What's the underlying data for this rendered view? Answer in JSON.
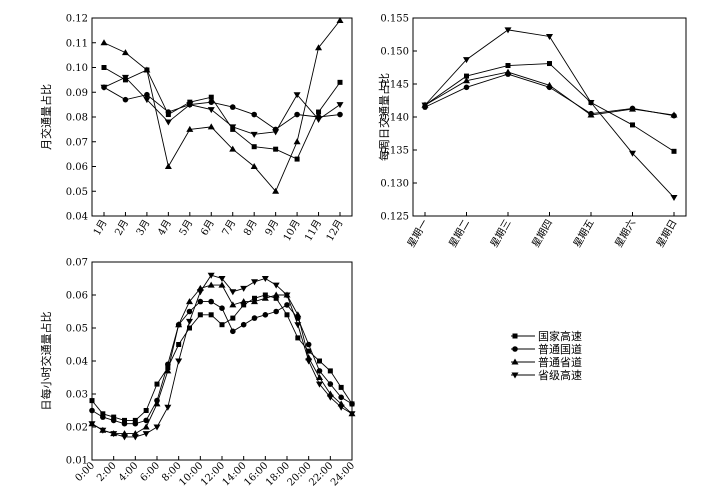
{
  "marker_legend": {
    "国家高速": "square",
    "普通国道": "circle",
    "普通省道": "triangle-up",
    "省级高速": "triangle-down"
  },
  "legend": [
    "国家高速",
    "普通国道",
    "普通省道",
    "省级高速"
  ],
  "chart_data": [
    {
      "id": "monthly",
      "type": "line",
      "title": "",
      "xlabel": "",
      "ylabel": "月交通量占比",
      "categories": [
        "1月",
        "2月",
        "3月",
        "4月",
        "5月",
        "6月",
        "7月",
        "8月",
        "9月",
        "10月",
        "11月",
        "12月"
      ],
      "ylim": [
        0.04,
        0.12
      ],
      "yticks": [
        "0.04",
        "0.05",
        "0.06",
        "0.07",
        "0.08",
        "0.09",
        "0.10",
        "0.11",
        "0.12"
      ],
      "series": [
        {
          "name": "国家高速",
          "values": [
            0.1,
            0.095,
            0.099,
            0.081,
            0.086,
            0.088,
            0.075,
            0.068,
            0.067,
            0.063,
            0.082,
            0.094
          ]
        },
        {
          "name": "普通国道",
          "values": [
            0.092,
            0.087,
            0.089,
            0.082,
            0.085,
            0.086,
            0.084,
            0.081,
            0.075,
            0.081,
            0.08,
            0.081
          ]
        },
        {
          "name": "普通省道",
          "values": [
            0.11,
            0.106,
            0.099,
            0.06,
            0.075,
            0.076,
            0.067,
            0.06,
            0.05,
            0.07,
            0.108,
            0.119
          ]
        },
        {
          "name": "省级高速",
          "values": [
            0.092,
            0.096,
            0.087,
            0.078,
            0.085,
            0.083,
            0.076,
            0.073,
            0.074,
            0.089,
            0.079,
            0.085
          ]
        }
      ]
    },
    {
      "id": "weekly",
      "type": "line",
      "title": "",
      "xlabel": "",
      "ylabel": "每周日交通量占比",
      "categories": [
        "星期一",
        "星期二",
        "星期三",
        "星期四",
        "星期五",
        "星期六",
        "星期日"
      ],
      "ylim": [
        0.125,
        0.155
      ],
      "yticks": [
        "0.125",
        "0.130",
        "0.135",
        "0.140",
        "0.145",
        "0.150",
        "0.155"
      ],
      "series": [
        {
          "name": "国家高速",
          "values": [
            0.1418,
            0.1462,
            0.1478,
            0.1481,
            0.1422,
            0.1388,
            0.1348
          ]
        },
        {
          "name": "普通国道",
          "values": [
            0.1415,
            0.1445,
            0.1465,
            0.1445,
            0.1405,
            0.1413,
            0.1402
          ]
        },
        {
          "name": "普通省道",
          "values": [
            0.1418,
            0.1455,
            0.1468,
            0.1448,
            0.1403,
            0.1412,
            0.1403
          ]
        },
        {
          "name": "省级高速",
          "values": [
            0.1418,
            0.1487,
            0.1532,
            0.1522,
            0.1422,
            0.1345,
            0.1278
          ]
        }
      ]
    },
    {
      "id": "hourly",
      "type": "line",
      "title": "",
      "xlabel": "",
      "ylabel": "日每小时交通量占比",
      "x": [
        0,
        1,
        2,
        3,
        4,
        5,
        6,
        7,
        8,
        9,
        10,
        11,
        12,
        13,
        14,
        15,
        16,
        17,
        18,
        19,
        20,
        21,
        22,
        23,
        24
      ],
      "xticks": [
        "0:00",
        "2:00",
        "4:00",
        "6:00",
        "8:00",
        "10:00",
        "12:00",
        "14:00",
        "16:00",
        "18:00",
        "20:00",
        "22:00",
        "24:00"
      ],
      "xlim": [
        0,
        24
      ],
      "ylim": [
        0.01,
        0.07
      ],
      "yticks": [
        "0.01",
        "0.02",
        "0.03",
        "0.04",
        "0.05",
        "0.06",
        "0.07"
      ],
      "series": [
        {
          "name": "国家高速",
          "values": [
            0.028,
            0.024,
            0.023,
            0.022,
            0.022,
            0.025,
            0.033,
            0.038,
            0.045,
            0.05,
            0.054,
            0.054,
            0.051,
            0.053,
            0.057,
            0.059,
            0.06,
            0.059,
            0.054,
            0.047,
            0.043,
            0.04,
            0.037,
            0.032,
            0.027
          ]
        },
        {
          "name": "普通国道",
          "values": [
            0.025,
            0.023,
            0.022,
            0.021,
            0.021,
            0.022,
            0.028,
            0.039,
            0.051,
            0.055,
            0.058,
            0.058,
            0.056,
            0.049,
            0.051,
            0.053,
            0.054,
            0.055,
            0.057,
            0.053,
            0.045,
            0.037,
            0.033,
            0.029,
            0.027
          ]
        },
        {
          "name": "普通省道",
          "values": [
            0.021,
            0.019,
            0.018,
            0.018,
            0.018,
            0.02,
            0.027,
            0.037,
            0.051,
            0.058,
            0.062,
            0.063,
            0.063,
            0.057,
            0.058,
            0.058,
            0.059,
            0.06,
            0.06,
            0.054,
            0.041,
            0.035,
            0.03,
            0.027,
            0.024
          ]
        },
        {
          "name": "省级高速",
          "values": [
            0.021,
            0.019,
            0.018,
            0.017,
            0.017,
            0.018,
            0.02,
            0.026,
            0.04,
            0.052,
            0.061,
            0.066,
            0.065,
            0.061,
            0.062,
            0.064,
            0.065,
            0.063,
            0.06,
            0.051,
            0.04,
            0.033,
            0.029,
            0.026,
            0.024
          ]
        }
      ]
    }
  ]
}
